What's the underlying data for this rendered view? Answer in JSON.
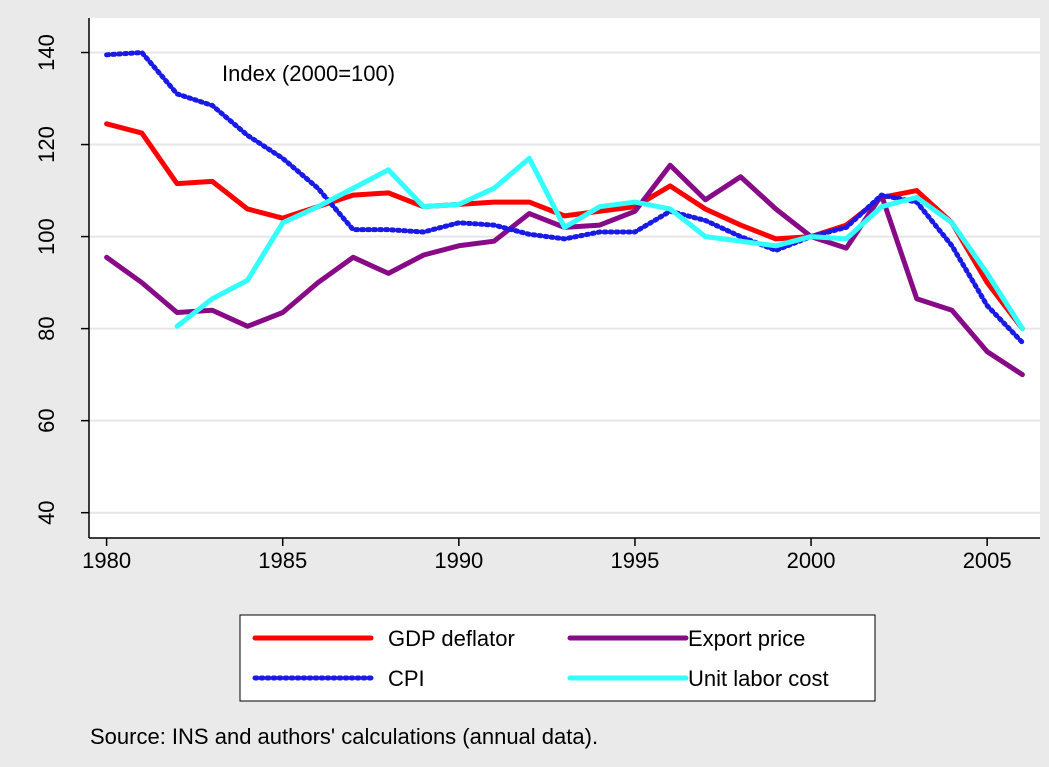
{
  "chart_data": {
    "type": "line",
    "annotation": "Index (2000=100)",
    "note": "Source: INS and authors' calculations (annual data).",
    "x": [
      1980,
      1981,
      1982,
      1983,
      1984,
      1985,
      1986,
      1987,
      1988,
      1989,
      1990,
      1991,
      1992,
      1993,
      1994,
      1995,
      1996,
      1997,
      1998,
      1999,
      2000,
      2001,
      2002,
      2003,
      2004,
      2005,
      2006
    ],
    "series": [
      {
        "name": "GDP deflator",
        "color": "#ff0000",
        "dash": "solid",
        "values": [
          124.5,
          122.5,
          111.5,
          112,
          106,
          104,
          106.5,
          109,
          109.5,
          106.5,
          107,
          107.5,
          107.5,
          104.5,
          105.5,
          106.5,
          111,
          106,
          102.5,
          99.5,
          100,
          102.5,
          108.5,
          110,
          103,
          90,
          80
        ]
      },
      {
        "name": "Export price",
        "color": "#870a87",
        "dash": "solid",
        "values": [
          95.5,
          90,
          83.5,
          84,
          80.5,
          83.5,
          90,
          95.5,
          92,
          96,
          98,
          99,
          105,
          102,
          102.5,
          105.5,
          115.5,
          108,
          113,
          106,
          100,
          97.5,
          109,
          86.5,
          84,
          75,
          70
        ]
      },
      {
        "name": "CPI",
        "color": "#1a1ae6",
        "dash": "dot",
        "values": [
          139.5,
          140,
          131,
          128.5,
          122,
          117,
          110.5,
          101.5,
          101.5,
          101,
          103,
          102.5,
          100.5,
          99.5,
          101,
          101,
          105.5,
          103.5,
          100,
          97,
          100,
          102,
          109,
          107.5,
          98,
          85,
          77
        ]
      },
      {
        "name": "Unit labor cost",
        "color": "#33ffff",
        "dash": "solid",
        "values": [
          null,
          null,
          80.5,
          86.5,
          90.5,
          103,
          106.5,
          110.5,
          114.5,
          106.5,
          107,
          110.5,
          117,
          102,
          106.5,
          107.5,
          106,
          100,
          99,
          98,
          100,
          99.5,
          106.5,
          108.5,
          103,
          92,
          80
        ]
      }
    ],
    "xlim": [
      1979.5,
      2006.5
    ],
    "xticks": [
      1980,
      1985,
      1990,
      1995,
      2000,
      2005
    ],
    "ylim": [
      34.5,
      147.5
    ],
    "yticks": [
      40,
      60,
      80,
      100,
      120,
      140
    ],
    "grid": true,
    "legend": "bottom"
  }
}
